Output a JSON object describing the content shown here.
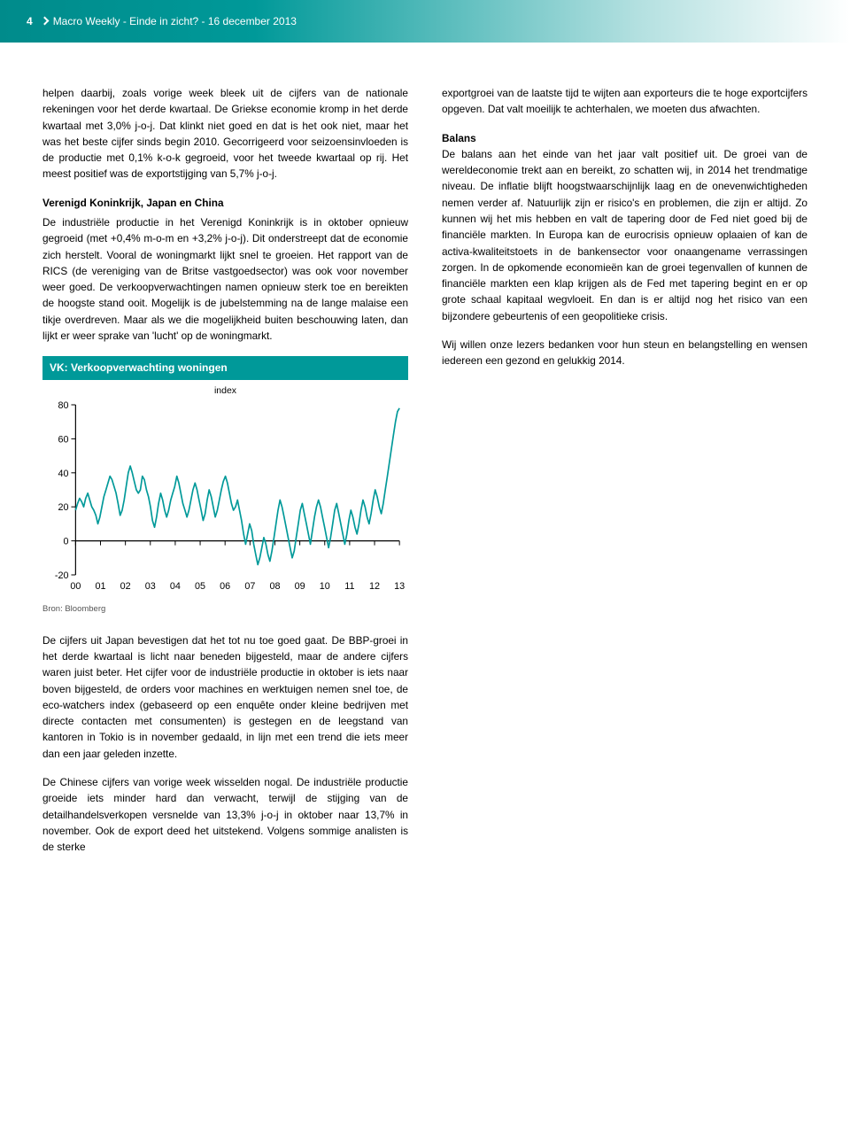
{
  "header": {
    "page_number": "4",
    "doc_title": "Macro Weekly - Einde in zicht? - 16 december 2013"
  },
  "left_col": {
    "p1": "helpen daarbij, zoals vorige week bleek uit de cijfers van de nationale rekeningen voor het derde kwartaal. De Griekse economie kromp in het derde kwartaal met 3,0% j-o-j. Dat klinkt niet goed en dat is het ook niet, maar het was het beste cijfer sinds begin 2010. Gecorrigeerd voor seizoensinvloeden is de productie met 0,1% k-o-k gegroeid, voor het tweede kwartaal op rij. Het meest positief was de exportstijging van 5,7% j-o-j.",
    "sub1": "Verenigd Koninkrijk, Japan en China",
    "p2": "De industriële productie in het Verenigd Koninkrijk is in oktober opnieuw gegroeid (met +0,4% m-o-m en +3,2% j-o-j). Dit onderstreept dat de economie zich herstelt. Vooral de woningmarkt lijkt snel te groeien. Het rapport van de RICS (de vereniging van de Britse vastgoedsector) was ook voor november weer goed. De verkoopverwachtingen namen opnieuw sterk toe en bereikten de hoogste stand ooit. Mogelijk is de jubelstemming na de lange malaise een tikje overdreven. Maar als we die mogelijkheid buiten beschouwing laten, dan lijkt er weer sprake van 'lucht' op de woningmarkt."
  },
  "chart": {
    "title": "VK: Verkoopverwachting woningen",
    "subtitle": "index",
    "type": "line",
    "x_labels": [
      "00",
      "01",
      "02",
      "03",
      "04",
      "05",
      "06",
      "07",
      "08",
      "09",
      "10",
      "11",
      "12",
      "13"
    ],
    "y_ticks": [
      -20,
      0,
      20,
      40,
      60,
      80
    ],
    "ylim": [
      -20,
      80
    ],
    "line_color": "#009999",
    "line_width": 1.7,
    "axis_color": "#000000",
    "axis_width": 1.2,
    "tick_color": "#000000",
    "tick_fontsize": 11,
    "background_color": "#ffffff",
    "series": [
      18,
      22,
      25,
      23,
      20,
      25,
      28,
      24,
      20,
      18,
      15,
      10,
      14,
      20,
      26,
      30,
      34,
      38,
      36,
      32,
      28,
      22,
      15,
      18,
      24,
      32,
      40,
      44,
      40,
      35,
      30,
      28,
      30,
      38,
      36,
      30,
      26,
      20,
      12,
      8,
      14,
      22,
      28,
      24,
      18,
      14,
      18,
      24,
      28,
      32,
      38,
      34,
      28,
      22,
      18,
      14,
      18,
      24,
      30,
      34,
      30,
      24,
      18,
      12,
      16,
      24,
      30,
      26,
      20,
      14,
      18,
      24,
      30,
      35,
      38,
      34,
      28,
      22,
      18,
      20,
      24,
      18,
      12,
      4,
      -2,
      4,
      10,
      6,
      -2,
      -8,
      -14,
      -10,
      -4,
      2,
      -2,
      -8,
      -12,
      -6,
      2,
      10,
      18,
      24,
      20,
      14,
      8,
      2,
      -4,
      -10,
      -6,
      2,
      10,
      18,
      22,
      16,
      10,
      4,
      -2,
      6,
      14,
      20,
      24,
      20,
      14,
      8,
      2,
      -4,
      2,
      10,
      18,
      22,
      16,
      10,
      4,
      -2,
      4,
      12,
      18,
      14,
      8,
      4,
      10,
      18,
      24,
      20,
      14,
      10,
      16,
      24,
      30,
      26,
      20,
      16,
      22,
      30,
      38,
      46,
      54,
      62,
      70,
      76,
      78
    ]
  },
  "chart_source": "Bron: Bloomberg",
  "below_chart": {
    "p1": "De cijfers uit Japan bevestigen dat het tot nu toe goed gaat. De BBP-groei in het derde kwartaal is licht naar beneden bijgesteld, maar de andere cijfers waren juist beter. Het cijfer voor de industriële productie in oktober is iets naar boven bijgesteld, de orders voor machines en werktuigen nemen snel toe, de eco-watchers index (gebaseerd op een enquête onder kleine bedrijven met directe contacten met consumenten) is gestegen en de leegstand van kantoren in Tokio is in november gedaald, in lijn met een trend die iets meer dan een jaar geleden inzette.",
    "p2": "De Chinese cijfers van vorige week wisselden nogal. De industriële productie groeide iets minder hard dan verwacht, terwijl de stijging van de detailhandelsverkopen versnelde van 13,3% j-o-j in oktober naar 13,7% in november. Ook de export deed het uitstekend. Volgens sommige analisten is de sterke"
  },
  "right_col": {
    "p1": "exportgroei van de laatste tijd te wijten aan exporteurs die te hoge exportcijfers opgeven. Dat valt moeilijk te achterhalen, we moeten dus afwachten.",
    "sub1": "Balans",
    "p2": "De balans aan het einde van het jaar valt positief uit. De groei van de wereldeconomie trekt aan en bereikt, zo schatten wij, in 2014 het trendmatige niveau. De inflatie blijft hoogstwaarschijnlijk laag en de onevenwichtigheden nemen verder af. Natuurlijk zijn er risico's en problemen, die zijn er altijd. Zo kunnen wij het mis hebben en valt de tapering door de Fed niet goed bij de financiële markten. In Europa kan de eurocrisis opnieuw oplaaien of kan de activa-kwaliteitstoets in de bankensector voor onaangename verrassingen zorgen. In de opkomende economieën kan de groei tegenvallen of kunnen de financiële markten een klap krijgen als de Fed met tapering begint en er op grote schaal kapitaal wegvloeit. En dan is er altijd nog het risico van een bijzondere gebeurtenis of een geopolitieke crisis.",
    "p3": "Wij willen onze lezers bedanken voor hun steun en belangstelling en wensen iedereen een gezond en gelukkig 2014."
  }
}
